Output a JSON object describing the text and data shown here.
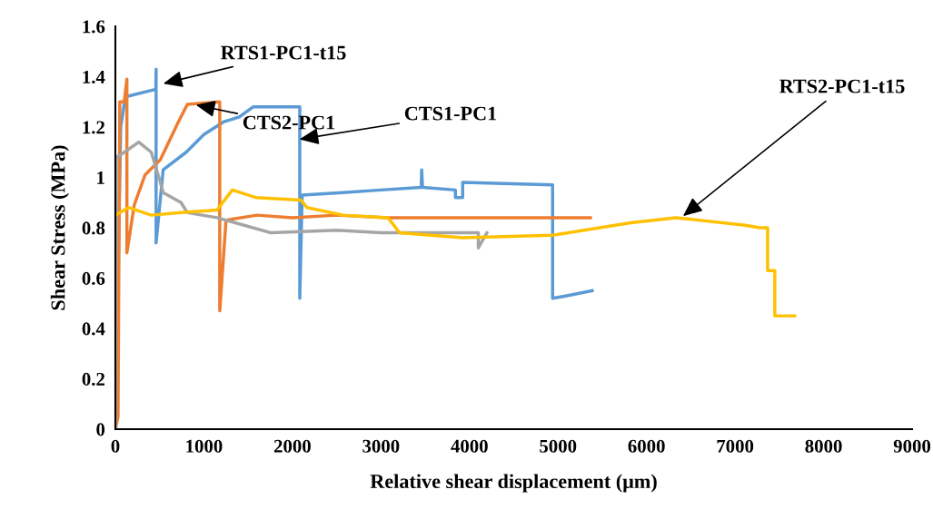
{
  "chart_data": {
    "type": "line",
    "xlabel": "Relative shear displacement (μm)",
    "ylabel": "Shear Stress (MPa)",
    "xlim": [
      0,
      9000
    ],
    "xticks": [
      0,
      1000,
      2000,
      3000,
      4000,
      5000,
      6000,
      7000,
      8000,
      9000
    ],
    "ylim": [
      0,
      1.6
    ],
    "yticks": [
      0,
      0.2,
      0.4,
      0.6,
      0.8,
      {
        "value": 1,
        "label": "1"
      },
      1.2,
      1.4,
      1.6
    ],
    "grid": false,
    "marker": "none",
    "line_style": "solid",
    "series": [
      {
        "color": "#5b9bd5",
        "x": [
          0,
          60,
          113,
          457,
          460,
          460,
          540,
          800,
          1000,
          1220,
          1400,
          1555,
          2083,
          2083,
          2110,
          2571,
          3000,
          3455,
          3460,
          3470,
          3841,
          3841,
          3923,
          3923,
          4939,
          4939,
          5100,
          5386
        ],
        "values": [
          0,
          1.2,
          1.32,
          1.35,
          1.43,
          0.74,
          1.03,
          1.1,
          1.17,
          1.22,
          1.24,
          1.28,
          1.28,
          0.52,
          0.93,
          0.94,
          0.95,
          0.96,
          1.03,
          0.96,
          0.95,
          0.92,
          0.92,
          0.98,
          0.97,
          0.52,
          0.53,
          0.55
        ]
      },
      {
        "color": "#ed7d31",
        "x": [
          0,
          30,
          50,
          100,
          130,
          130,
          213,
          335,
          508,
          711,
          813,
          1179,
          1179,
          1250,
          1600,
          2000,
          2500,
          3079,
          5366
        ],
        "values": [
          0,
          0.05,
          1.3,
          1.3,
          1.39,
          0.7,
          0.89,
          1.01,
          1.07,
          1.22,
          1.29,
          1.3,
          0.47,
          0.83,
          0.85,
          0.84,
          0.85,
          0.84,
          0.84
        ]
      },
      {
        "color": "#a5a5a5",
        "x": [
          0,
          10,
          61,
          264,
          406,
          508,
          539,
          742,
          813,
          1148,
          1758,
          2500,
          3000,
          3800,
          4100,
          4100,
          4197
        ],
        "values": [
          0,
          1.08,
          1.09,
          1.14,
          1.1,
          0.98,
          0.94,
          0.9,
          0.86,
          0.84,
          0.78,
          0.79,
          0.78,
          0.78,
          0.78,
          0.72,
          0.78
        ]
      },
      {
        "color": "#ffc000",
        "x": [
          0,
          152,
          406,
          742,
          1148,
          1321,
          1585,
          2094,
          2165,
          2571,
          3079,
          3211,
          3923,
          4939,
          5823,
          6331,
          7114,
          7276,
          7368,
          7368,
          7449,
          7449,
          7673
        ],
        "values": [
          0.85,
          0.88,
          0.85,
          0.86,
          0.87,
          0.95,
          0.92,
          0.91,
          0.88,
          0.85,
          0.84,
          0.78,
          0.76,
          0.77,
          0.82,
          0.84,
          0.81,
          0.8,
          0.8,
          0.63,
          0.63,
          0.45,
          0.45
        ]
      }
    ],
    "annotations": [
      {
        "text": "RTS1-PC1-t15",
        "x": 513,
        "y": 1.37
      },
      {
        "text": "CTS2-PC1",
        "x": 882,
        "y": 1.29
      },
      {
        "text": "CTS1-PC1",
        "x": 2051,
        "y": 1.15
      },
      {
        "text": "RTS2-PC1-t15",
        "x": 6390,
        "y": 0.84
      }
    ]
  }
}
